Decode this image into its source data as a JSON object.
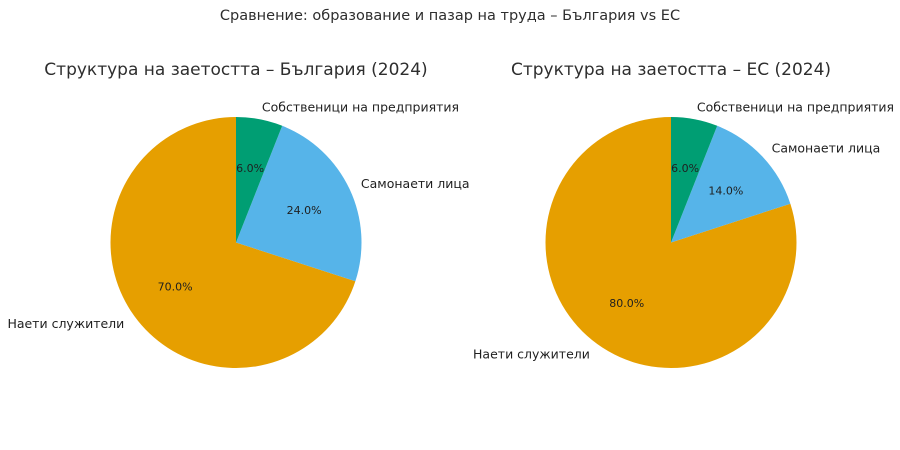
{
  "figure": {
    "title": "Сравнение: образование и пазар на труда – България vs ЕС",
    "background": "#ffffff",
    "text_color": "#2e2e2e"
  },
  "palette": {
    "orange": "#E69F00",
    "blue": "#56B4E9",
    "green": "#009E73"
  },
  "chart_data": [
    {
      "type": "pie",
      "title": "Структура на заетостта – България (2024)",
      "slices": [
        {
          "label": "Наети служители",
          "value": 70.0,
          "pct_label": "70.0%",
          "color": "#E69F00"
        },
        {
          "label": "Самонаети лица",
          "value": 24.0,
          "pct_label": "24.0%",
          "color": "#56B4E9"
        },
        {
          "label": "Собственици на предприятия",
          "value": 6.0,
          "pct_label": "6.0%",
          "color": "#009E73"
        }
      ],
      "startangle": 90,
      "counterclock": true,
      "labeldistance": 1.1,
      "pctdistance": 0.6,
      "legend": "none"
    },
    {
      "type": "pie",
      "title": "Структура на заетостта – ЕС (2024)",
      "slices": [
        {
          "label": "Наети служители",
          "value": 80.0,
          "pct_label": "80.0%",
          "color": "#E69F00"
        },
        {
          "label": "Самонаети лица",
          "value": 14.0,
          "pct_label": "14.0%",
          "color": "#56B4E9"
        },
        {
          "label": "Собственици на предприятия",
          "value": 6.0,
          "pct_label": "6.0%",
          "color": "#009E73"
        }
      ],
      "startangle": 90,
      "counterclock": true,
      "labeldistance": 1.1,
      "pctdistance": 0.6,
      "legend": "none"
    }
  ]
}
